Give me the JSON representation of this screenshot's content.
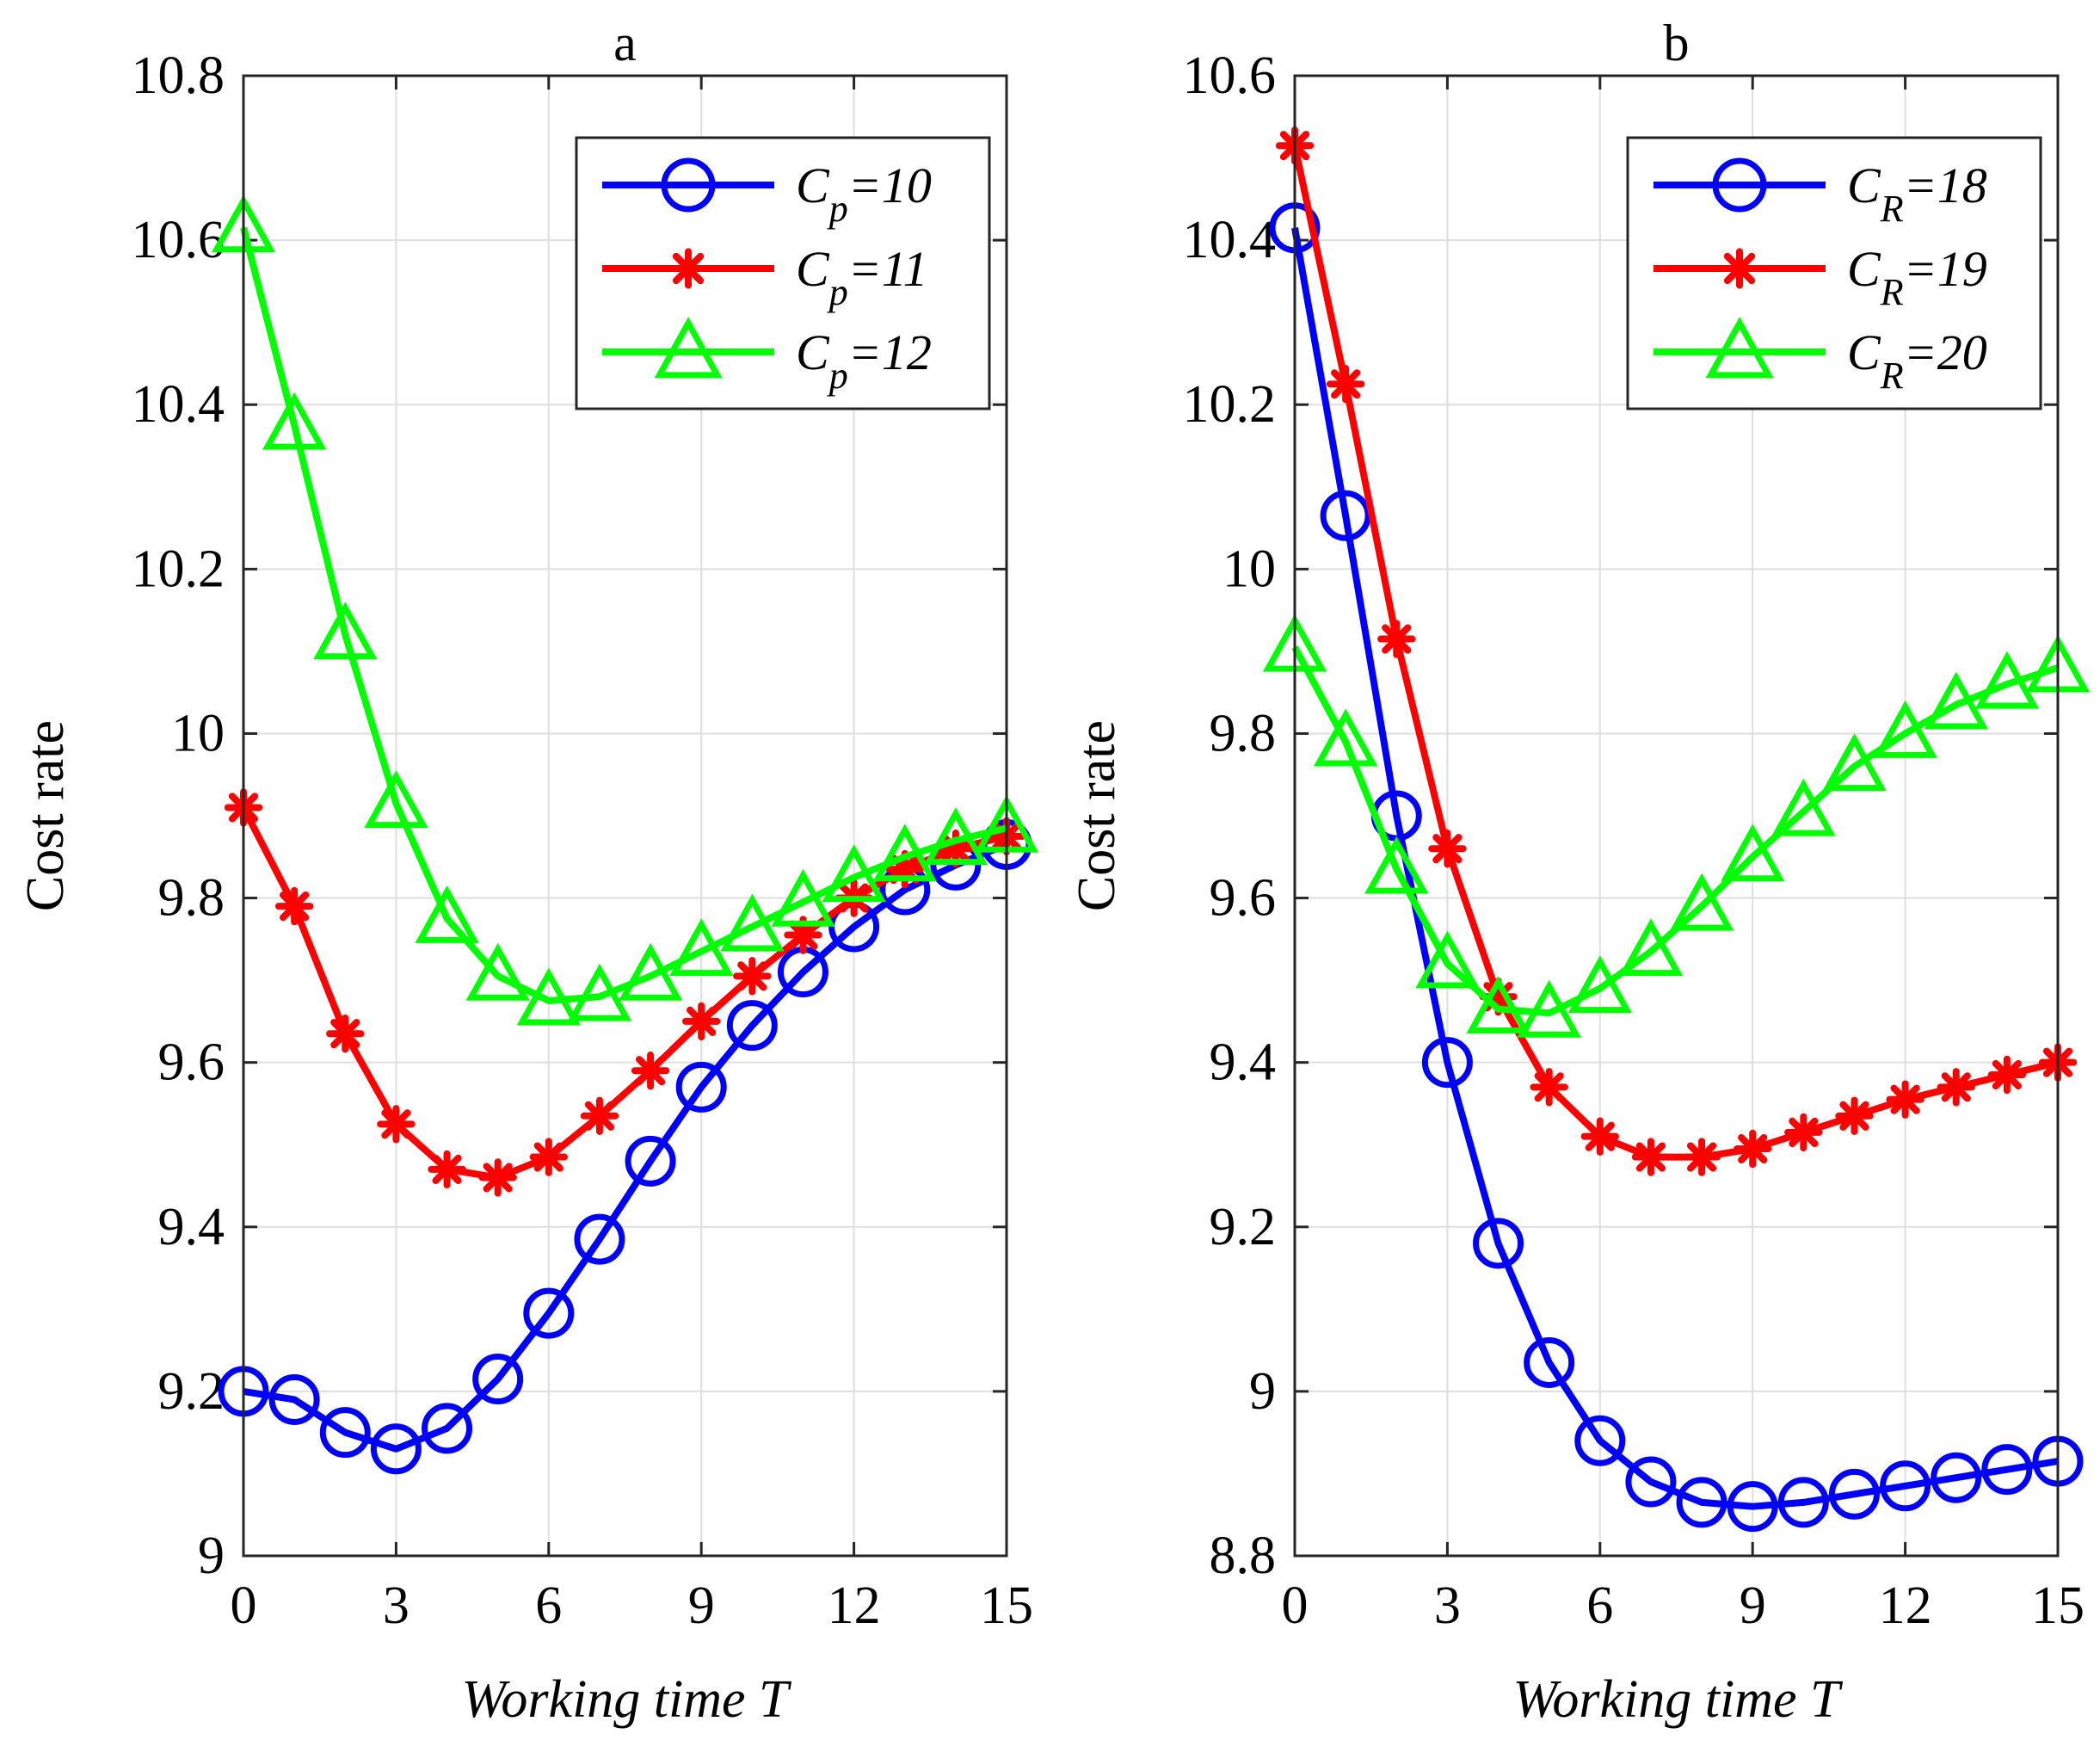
{
  "chart_data": [
    {
      "type": "line",
      "title": "a",
      "xlabel": "Working time T",
      "ylabel": "Cost rate",
      "xlim": [
        0,
        15
      ],
      "ylim": [
        9,
        10.8
      ],
      "xticks": [
        "0",
        "3",
        "6",
        "9",
        "12",
        "15"
      ],
      "yticks": [
        "9",
        "9.2",
        "9.4",
        "9.6",
        "9.8",
        "10",
        "10.2",
        "10.4",
        "10.6",
        "10.8"
      ],
      "grid": true,
      "legend_position": "top-right",
      "x": [
        0,
        1,
        2,
        3,
        4,
        5,
        6,
        7,
        8,
        9,
        10,
        11,
        12,
        13,
        14,
        15
      ],
      "series": [
        {
          "name": "C_p=10",
          "legend_main": "C",
          "legend_sub": "p",
          "legend_rest": "=10",
          "color": "#0000ff",
          "marker": "circle",
          "values": [
            9.2,
            9.19,
            9.15,
            9.13,
            9.155,
            9.215,
            9.295,
            9.385,
            9.48,
            9.57,
            9.645,
            9.71,
            9.765,
            9.81,
            9.84,
            9.865
          ]
        },
        {
          "name": "C_p=11",
          "legend_main": "C",
          "legend_sub": "p",
          "legend_rest": "=11",
          "color": "#ff0000",
          "marker": "asterisk",
          "values": [
            9.91,
            9.79,
            9.635,
            9.525,
            9.47,
            9.46,
            9.485,
            9.535,
            9.59,
            9.65,
            9.705,
            9.755,
            9.8,
            9.835,
            9.86,
            9.875
          ]
        },
        {
          "name": "C_p=12",
          "legend_main": "C",
          "legend_sub": "p",
          "legend_rest": "=12",
          "color": "#00ff00",
          "marker": "triangle",
          "values": [
            10.615,
            10.375,
            10.12,
            9.915,
            9.775,
            9.705,
            9.675,
            9.68,
            9.705,
            9.735,
            9.765,
            9.795,
            9.825,
            9.85,
            9.87,
            9.885
          ]
        }
      ]
    },
    {
      "type": "line",
      "title": "b",
      "xlabel": "Working time T",
      "ylabel": "Cost rate",
      "xlim": [
        0,
        15
      ],
      "ylim": [
        8.8,
        10.6
      ],
      "xticks": [
        "0",
        "3",
        "6",
        "9",
        "12",
        "15"
      ],
      "yticks": [
        "8.8",
        "9",
        "9.2",
        "9.4",
        "9.6",
        "9.8",
        "10",
        "10.2",
        "10.4",
        "10.6"
      ],
      "grid": true,
      "legend_position": "top-right",
      "x": [
        0,
        1,
        2,
        3,
        4,
        5,
        6,
        7,
        8,
        9,
        10,
        11,
        12,
        13,
        14,
        15
      ],
      "series": [
        {
          "name": "C_R=18",
          "legend_main": "C",
          "legend_sub": "R",
          "legend_rest": "=18",
          "color": "#0000ff",
          "marker": "circle",
          "values": [
            10.415,
            10.065,
            9.7,
            9.4,
            9.18,
            9.035,
            8.94,
            8.89,
            8.865,
            8.86,
            8.865,
            8.875,
            8.885,
            8.895,
            8.905,
            8.915
          ]
        },
        {
          "name": "C_R=19",
          "legend_main": "C",
          "legend_sub": "R",
          "legend_rest": "=19",
          "color": "#ff0000",
          "marker": "asterisk",
          "values": [
            10.515,
            10.225,
            9.915,
            9.66,
            9.48,
            9.37,
            9.31,
            9.285,
            9.285,
            9.295,
            9.315,
            9.335,
            9.355,
            9.37,
            9.385,
            9.4
          ]
        },
        {
          "name": "C_R=20",
          "legend_main": "C",
          "legend_sub": "R",
          "legend_rest": "=20",
          "color": "#00ff00",
          "marker": "triangle",
          "values": [
            9.905,
            9.79,
            9.635,
            9.52,
            9.465,
            9.46,
            9.49,
            9.535,
            9.59,
            9.65,
            9.705,
            9.76,
            9.8,
            9.835,
            9.86,
            9.88
          ]
        }
      ]
    }
  ]
}
